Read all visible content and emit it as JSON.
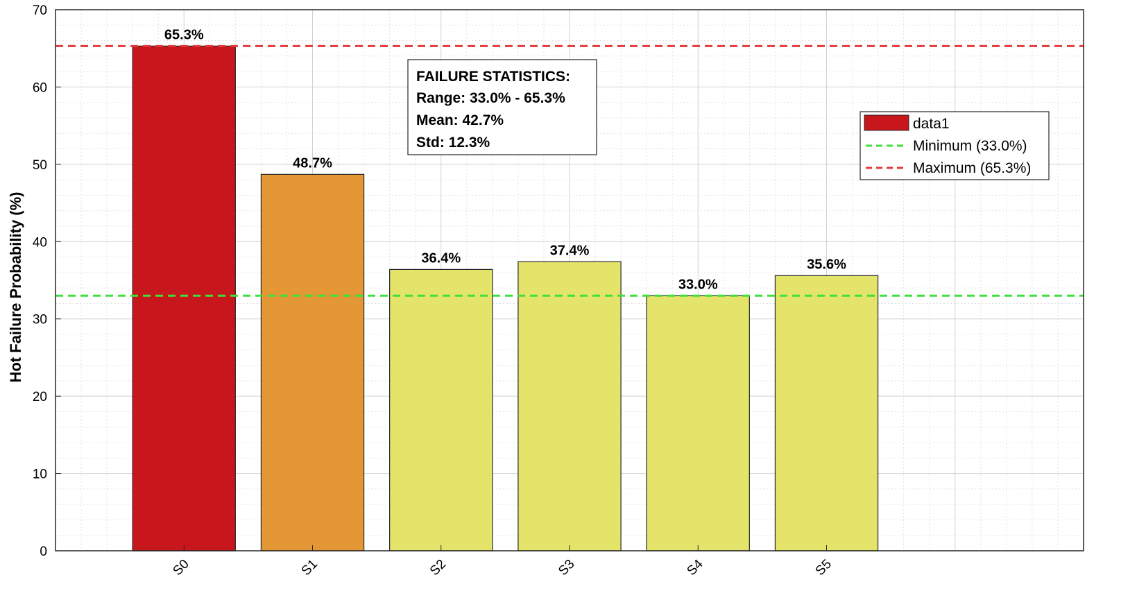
{
  "chart_data": {
    "type": "bar",
    "title": "",
    "xlabel": "",
    "ylabel": "Hot Failure Probability (%)",
    "categories": [
      "S0",
      "S1",
      "S2",
      "S3",
      "S4",
      "S5"
    ],
    "values": [
      65.3,
      48.7,
      36.4,
      37.4,
      33.0,
      35.6
    ],
    "data_labels": [
      "65.3%",
      "48.7%",
      "36.4%",
      "37.4%",
      "33.0%",
      "35.6%"
    ],
    "bar_colors": [
      "#c8171c",
      "#e39835",
      "#e5e46a",
      "#e5e46a",
      "#e5e46a",
      "#e5e46a"
    ],
    "ylim": [
      0,
      70
    ],
    "yticks": [
      0,
      10,
      20,
      30,
      40,
      50,
      60,
      70
    ],
    "xlim": [
      -1,
      7
    ],
    "grid": true,
    "minor_grid": true,
    "reference_lines": [
      {
        "name": "Minimum (33.0%)",
        "value": 33.0,
        "color": "#3ee03a",
        "style": "dashed"
      },
      {
        "name": "Maximum (65.3%)",
        "value": 65.3,
        "color": "#e23b3b",
        "style": "dashed"
      }
    ],
    "legend": {
      "placement": "top-right",
      "entries": [
        {
          "label": "data1",
          "kind": "bar",
          "color": "#c8171c"
        },
        {
          "label": "Minimum (33.0%)",
          "kind": "line",
          "color": "#3ee03a"
        },
        {
          "label": "Maximum (65.3%)",
          "kind": "line",
          "color": "#e23b3b"
        }
      ]
    },
    "annotation": {
      "lines": [
        "FAILURE STATISTICS:",
        "Range: 33.0% - 65.3%",
        "Mean: 42.7%",
        "Std: 12.3%"
      ]
    }
  }
}
